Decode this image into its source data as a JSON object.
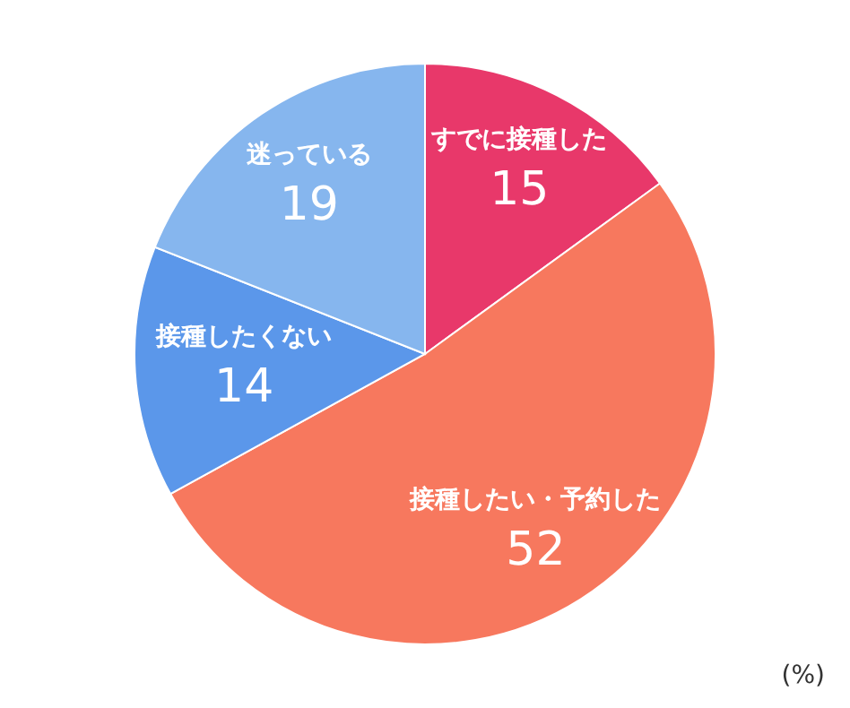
{
  "chart_data": {
    "type": "pie",
    "categories": [
      "すでに接種した",
      "接種したい・予約した",
      "接種したくない",
      "迷っている"
    ],
    "values": [
      15,
      52,
      14,
      19
    ],
    "colors": [
      "#e8386a",
      "#f7785e",
      "#5b97ea",
      "#86b6ee"
    ],
    "data_labels": true,
    "annotations": [
      "(%)"
    ]
  }
}
